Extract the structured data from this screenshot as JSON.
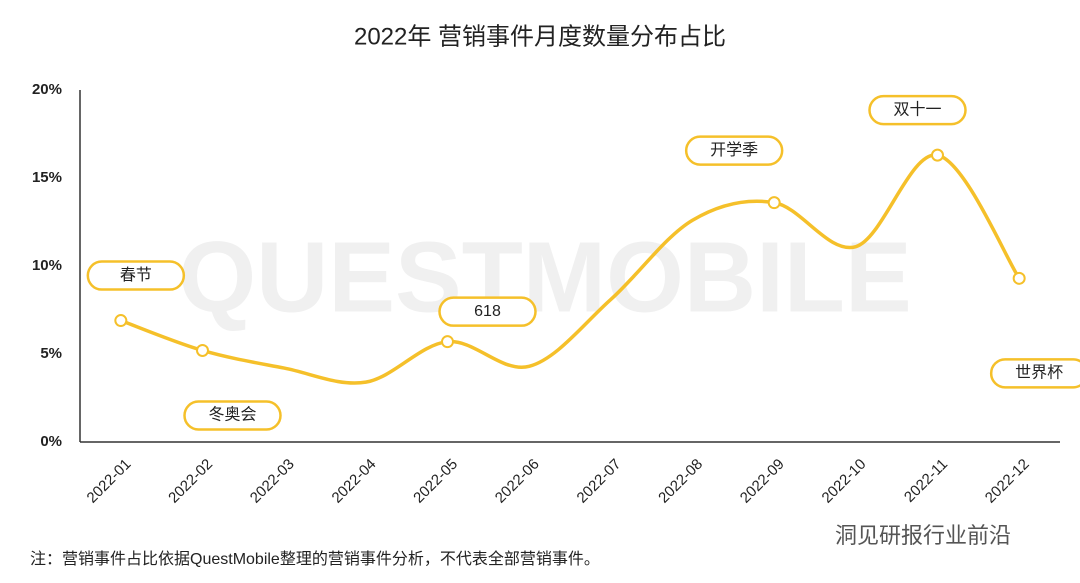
{
  "chart_data": {
    "type": "line",
    "title": "2022年 营销事件月度数量分布占比",
    "watermark": "QUESTMOBILE",
    "categories": [
      "2022-01",
      "2022-02",
      "2022-03",
      "2022-04",
      "2022-05",
      "2022-06",
      "2022-07",
      "2022-08",
      "2022-09",
      "2022-10",
      "2022-11",
      "2022-12"
    ],
    "series": [
      {
        "name": "营销事件占比",
        "color": "#f5c02a",
        "values": [
          6.9,
          5.2,
          4.2,
          3.4,
          5.7,
          4.3,
          8.1,
          12.6,
          13.6,
          11.1,
          16.3,
          9.3
        ]
      }
    ],
    "annotations": [
      {
        "text": "春节",
        "category": "2022-01"
      },
      {
        "text": "冬奥会",
        "category": "2022-02"
      },
      {
        "text": "618",
        "category": "2022-05"
      },
      {
        "text": "开学季",
        "category": "2022-09"
      },
      {
        "text": "双十一",
        "category": "2022-11"
      },
      {
        "text": "世界杯",
        "category": "2022-12"
      }
    ],
    "ylim": [
      0,
      20
    ],
    "yticks": [
      {
        "value": 0,
        "label": "0%"
      },
      {
        "value": 5,
        "label": "5%"
      },
      {
        "value": 10,
        "label": "10%"
      },
      {
        "value": 15,
        "label": "15%"
      },
      {
        "value": 20,
        "label": "20%"
      }
    ],
    "note": "注：营销事件占比依据QuestMobile整理的营销事件分析，不代表全部营销事件。",
    "source": "洞见研报行业前沿"
  }
}
